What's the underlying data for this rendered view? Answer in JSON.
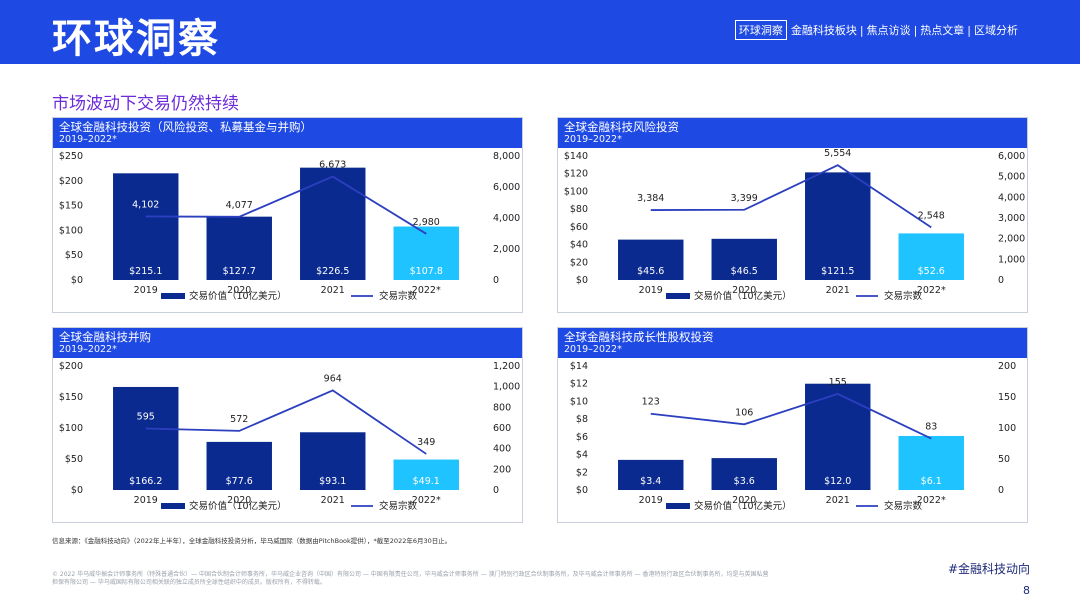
{
  "header": {
    "title": "环球洞察",
    "nav": [
      "环球洞察",
      "金融科技板块",
      "焦点访谈",
      "热点文章",
      "区域分析"
    ]
  },
  "subtitle": "市场波动下交易仍然持续",
  "colors": {
    "brand": "#1e49e2",
    "bar": "#0b2a8f",
    "bar_highlight": "#1ec3ff",
    "line": "#2b3fbf",
    "subtitle": "#6c2bd9"
  },
  "legend": {
    "bar": "交易价值（10亿美元）",
    "line": "交易宗数"
  },
  "charts": [
    {
      "title": "全球金融科技投资（风险投资、私募基金与并购）",
      "subtitle": "2019–2022*"
    },
    {
      "title": "全球金融科技风险投资",
      "subtitle": "2019–2022*"
    },
    {
      "title": "全球金融科技并购",
      "subtitle": "2019–2022*"
    },
    {
      "title": "全球金融科技成长性股权投资",
      "subtitle": "2019–2022*"
    }
  ],
  "chart_data": [
    {
      "type": "bar",
      "title": "全球金融科技投资（风险投资、私募基金与并购）",
      "categories": [
        "2019",
        "2020",
        "2021",
        "2022*"
      ],
      "series": [
        {
          "name": "交易价值（10亿美元）",
          "kind": "bar",
          "values": [
            215.1,
            127.7,
            226.5,
            107.8
          ],
          "labels": [
            "$215.1",
            "$127.7",
            "$226.5",
            "$107.8"
          ]
        },
        {
          "name": "交易宗数",
          "kind": "line",
          "values": [
            4102,
            4077,
            6673,
            2980
          ],
          "labels": [
            "4,102",
            "4,077",
            "6,673",
            "2,980"
          ]
        }
      ],
      "ylim": [
        0,
        250
      ],
      "y_ticks": [
        "$0",
        "$50",
        "$100",
        "$150",
        "$200",
        "$250"
      ],
      "y2lim": [
        0,
        8000
      ],
      "y2_ticks": [
        "0",
        "2,000",
        "4,000",
        "6,000",
        "8,000"
      ]
    },
    {
      "type": "bar",
      "title": "全球金融科技风险投资",
      "categories": [
        "2019",
        "2020",
        "2021",
        "2022*"
      ],
      "series": [
        {
          "name": "交易价值（10亿美元）",
          "kind": "bar",
          "values": [
            45.6,
            46.5,
            121.5,
            52.6
          ],
          "labels": [
            "$45.6",
            "$46.5",
            "$121.5",
            "$52.6"
          ]
        },
        {
          "name": "交易宗数",
          "kind": "line",
          "values": [
            3384,
            3399,
            5554,
            2548
          ],
          "labels": [
            "3,384",
            "3,399",
            "5,554",
            "2,548"
          ]
        }
      ],
      "ylim": [
        0,
        140
      ],
      "y_ticks": [
        "$0",
        "$20",
        "$40",
        "$60",
        "$80",
        "$100",
        "$120",
        "$140"
      ],
      "y2lim": [
        0,
        6000
      ],
      "y2_ticks": [
        "0",
        "1,000",
        "2,000",
        "3,000",
        "4,000",
        "5,000",
        "6,000"
      ]
    },
    {
      "type": "bar",
      "title": "全球金融科技并购",
      "categories": [
        "2019",
        "2020",
        "2021",
        "2022*"
      ],
      "series": [
        {
          "name": "交易价值（10亿美元）",
          "kind": "bar",
          "values": [
            166.2,
            77.6,
            93.1,
            49.1
          ],
          "labels": [
            "$166.2",
            "$77.6",
            "$93.1",
            "$49.1"
          ]
        },
        {
          "name": "交易宗数",
          "kind": "line",
          "values": [
            595,
            572,
            964,
            349
          ],
          "labels": [
            "595",
            "572",
            "964",
            "349"
          ]
        }
      ],
      "ylim": [
        0,
        200
      ],
      "y_ticks": [
        "$0",
        "$50",
        "$100",
        "$150",
        "$200"
      ],
      "y2lim": [
        0,
        1200
      ],
      "y2_ticks": [
        "0",
        "200",
        "400",
        "600",
        "800",
        "1,000",
        "1,200"
      ]
    },
    {
      "type": "bar",
      "title": "全球金融科技成长性股权投资",
      "categories": [
        "2019",
        "2020",
        "2021",
        "2022*"
      ],
      "series": [
        {
          "name": "交易价值（10亿美元）",
          "kind": "bar",
          "values": [
            3.4,
            3.6,
            12.0,
            6.1
          ],
          "labels": [
            "$3.4",
            "$3.6",
            "$12.0",
            "$6.1"
          ]
        },
        {
          "name": "交易宗数",
          "kind": "line",
          "values": [
            123,
            106,
            155,
            83
          ],
          "labels": [
            "123",
            "106",
            "155",
            "83"
          ]
        }
      ],
      "ylim": [
        0,
        14
      ],
      "y_ticks": [
        "$0",
        "$2",
        "$4",
        "$6",
        "$8",
        "$10",
        "$12",
        "$14"
      ],
      "y2lim": [
        0,
        200
      ],
      "y2_ticks": [
        "0",
        "50",
        "100",
        "150",
        "200"
      ]
    }
  ],
  "source": "信息来源：《金融科技动向》（2022年上半年），全球金融科技投资分析，毕马威国际（数据由PitchBook提供），*截至2022年6月30日止。",
  "footnote": "© 2022 毕马威华振会计师事务所（特殊普通合伙）— 中国合伙制会计师事务所，毕马威企业咨询（中国）有限公司 — 中国有限责任公司，毕马威会计师事务所 — 澳门特别行政区合伙制事务所，及毕马威会计师事务所 — 香港特别行政区合伙制事务所，均是与英国私营担保有限公司 — 毕马威国际有限公司相关联的独立成员所全球性组织中的成员。版权所有，不得转载。",
  "hashtag": "#金融科技动向",
  "page_number": "8"
}
